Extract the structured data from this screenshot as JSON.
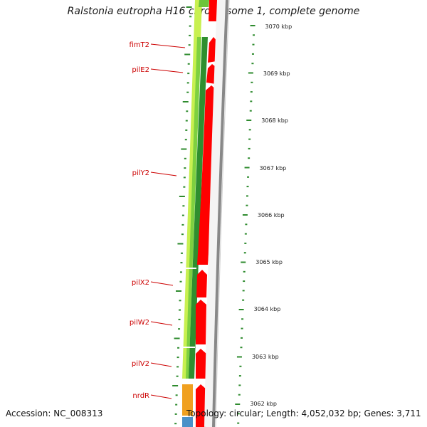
{
  "title": "Ralstonia eutropha H16 chromosome 1, complete genome",
  "colors": {
    "gene_label": "#cc0000",
    "forward_outer": "#c8f050",
    "forward_mid": "#7ed040",
    "forward_inner": "#2f8f2f",
    "reverse_cds": "#ff0000",
    "backbone": "#888888",
    "tick": "#2e8b2e",
    "nrdR_gene": "#f0a020",
    "blue_gene": "#4a90c8"
  },
  "genes": [
    {
      "name": "fimT2"
    },
    {
      "name": "pilE2"
    },
    {
      "name": "pilY2"
    },
    {
      "name": "pilX2"
    },
    {
      "name": "pilW2"
    },
    {
      "name": "pilV2"
    },
    {
      "name": "nrdR"
    }
  ],
  "scale": {
    "unit": "kbp",
    "labels": [
      "3070 kbp",
      "3069 kbp",
      "3068 kbp",
      "3067 kbp",
      "3066 kbp",
      "3065 kbp",
      "3064 kbp",
      "3063 kbp",
      "3062 kbp"
    ]
  },
  "footer": {
    "accession": "Accession: NC_008313",
    "topology": "Topology: circular; Length: 4,052,032 bp; Genes: 3,711"
  }
}
